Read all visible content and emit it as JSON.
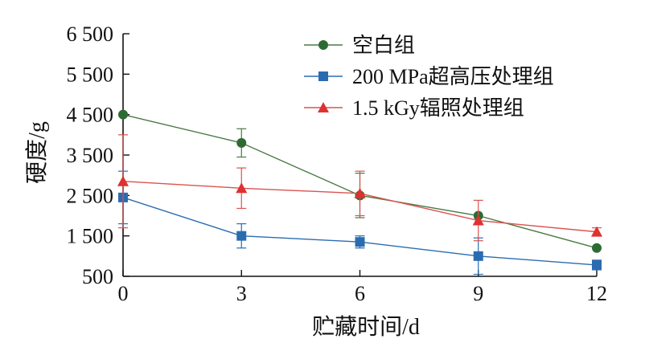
{
  "chart_data": {
    "type": "line",
    "title": "",
    "xlabel": "贮藏时间/d",
    "ylabel": "硬度/g",
    "x": [
      0,
      3,
      6,
      9,
      12
    ],
    "x_ticks": [
      "0",
      "3",
      "6",
      "9",
      "12"
    ],
    "xlim": [
      0,
      12
    ],
    "ylim": [
      500,
      6500
    ],
    "y_ticks": [
      "500",
      "1 500",
      "2 500",
      "3 500",
      "4 500",
      "5 500",
      "6 500"
    ],
    "grid": false,
    "legend_position": "top-right",
    "series": [
      {
        "name": "空白组",
        "color": "#4a7a45",
        "marker_color": "#2e6b34",
        "marker": "circle",
        "values": [
          4500,
          3800,
          2500,
          2000,
          1200
        ],
        "errors": [
          0,
          350,
          550,
          0,
          0
        ]
      },
      {
        "name": "200 MPa超高压处理组",
        "color": "#2b6cb0",
        "marker_color": "#2b6cb0",
        "marker": "square",
        "values": [
          2450,
          1500,
          1350,
          1000,
          780
        ],
        "errors": [
          650,
          300,
          150,
          450,
          120
        ]
      },
      {
        "name": "1.5 kGy辐照处理组",
        "color": "#d9534f",
        "marker_color": "#e03030",
        "marker": "triangle",
        "values": [
          2850,
          2680,
          2550,
          1880,
          1600
        ],
        "errors": [
          1150,
          500,
          550,
          500,
          100
        ]
      }
    ]
  }
}
